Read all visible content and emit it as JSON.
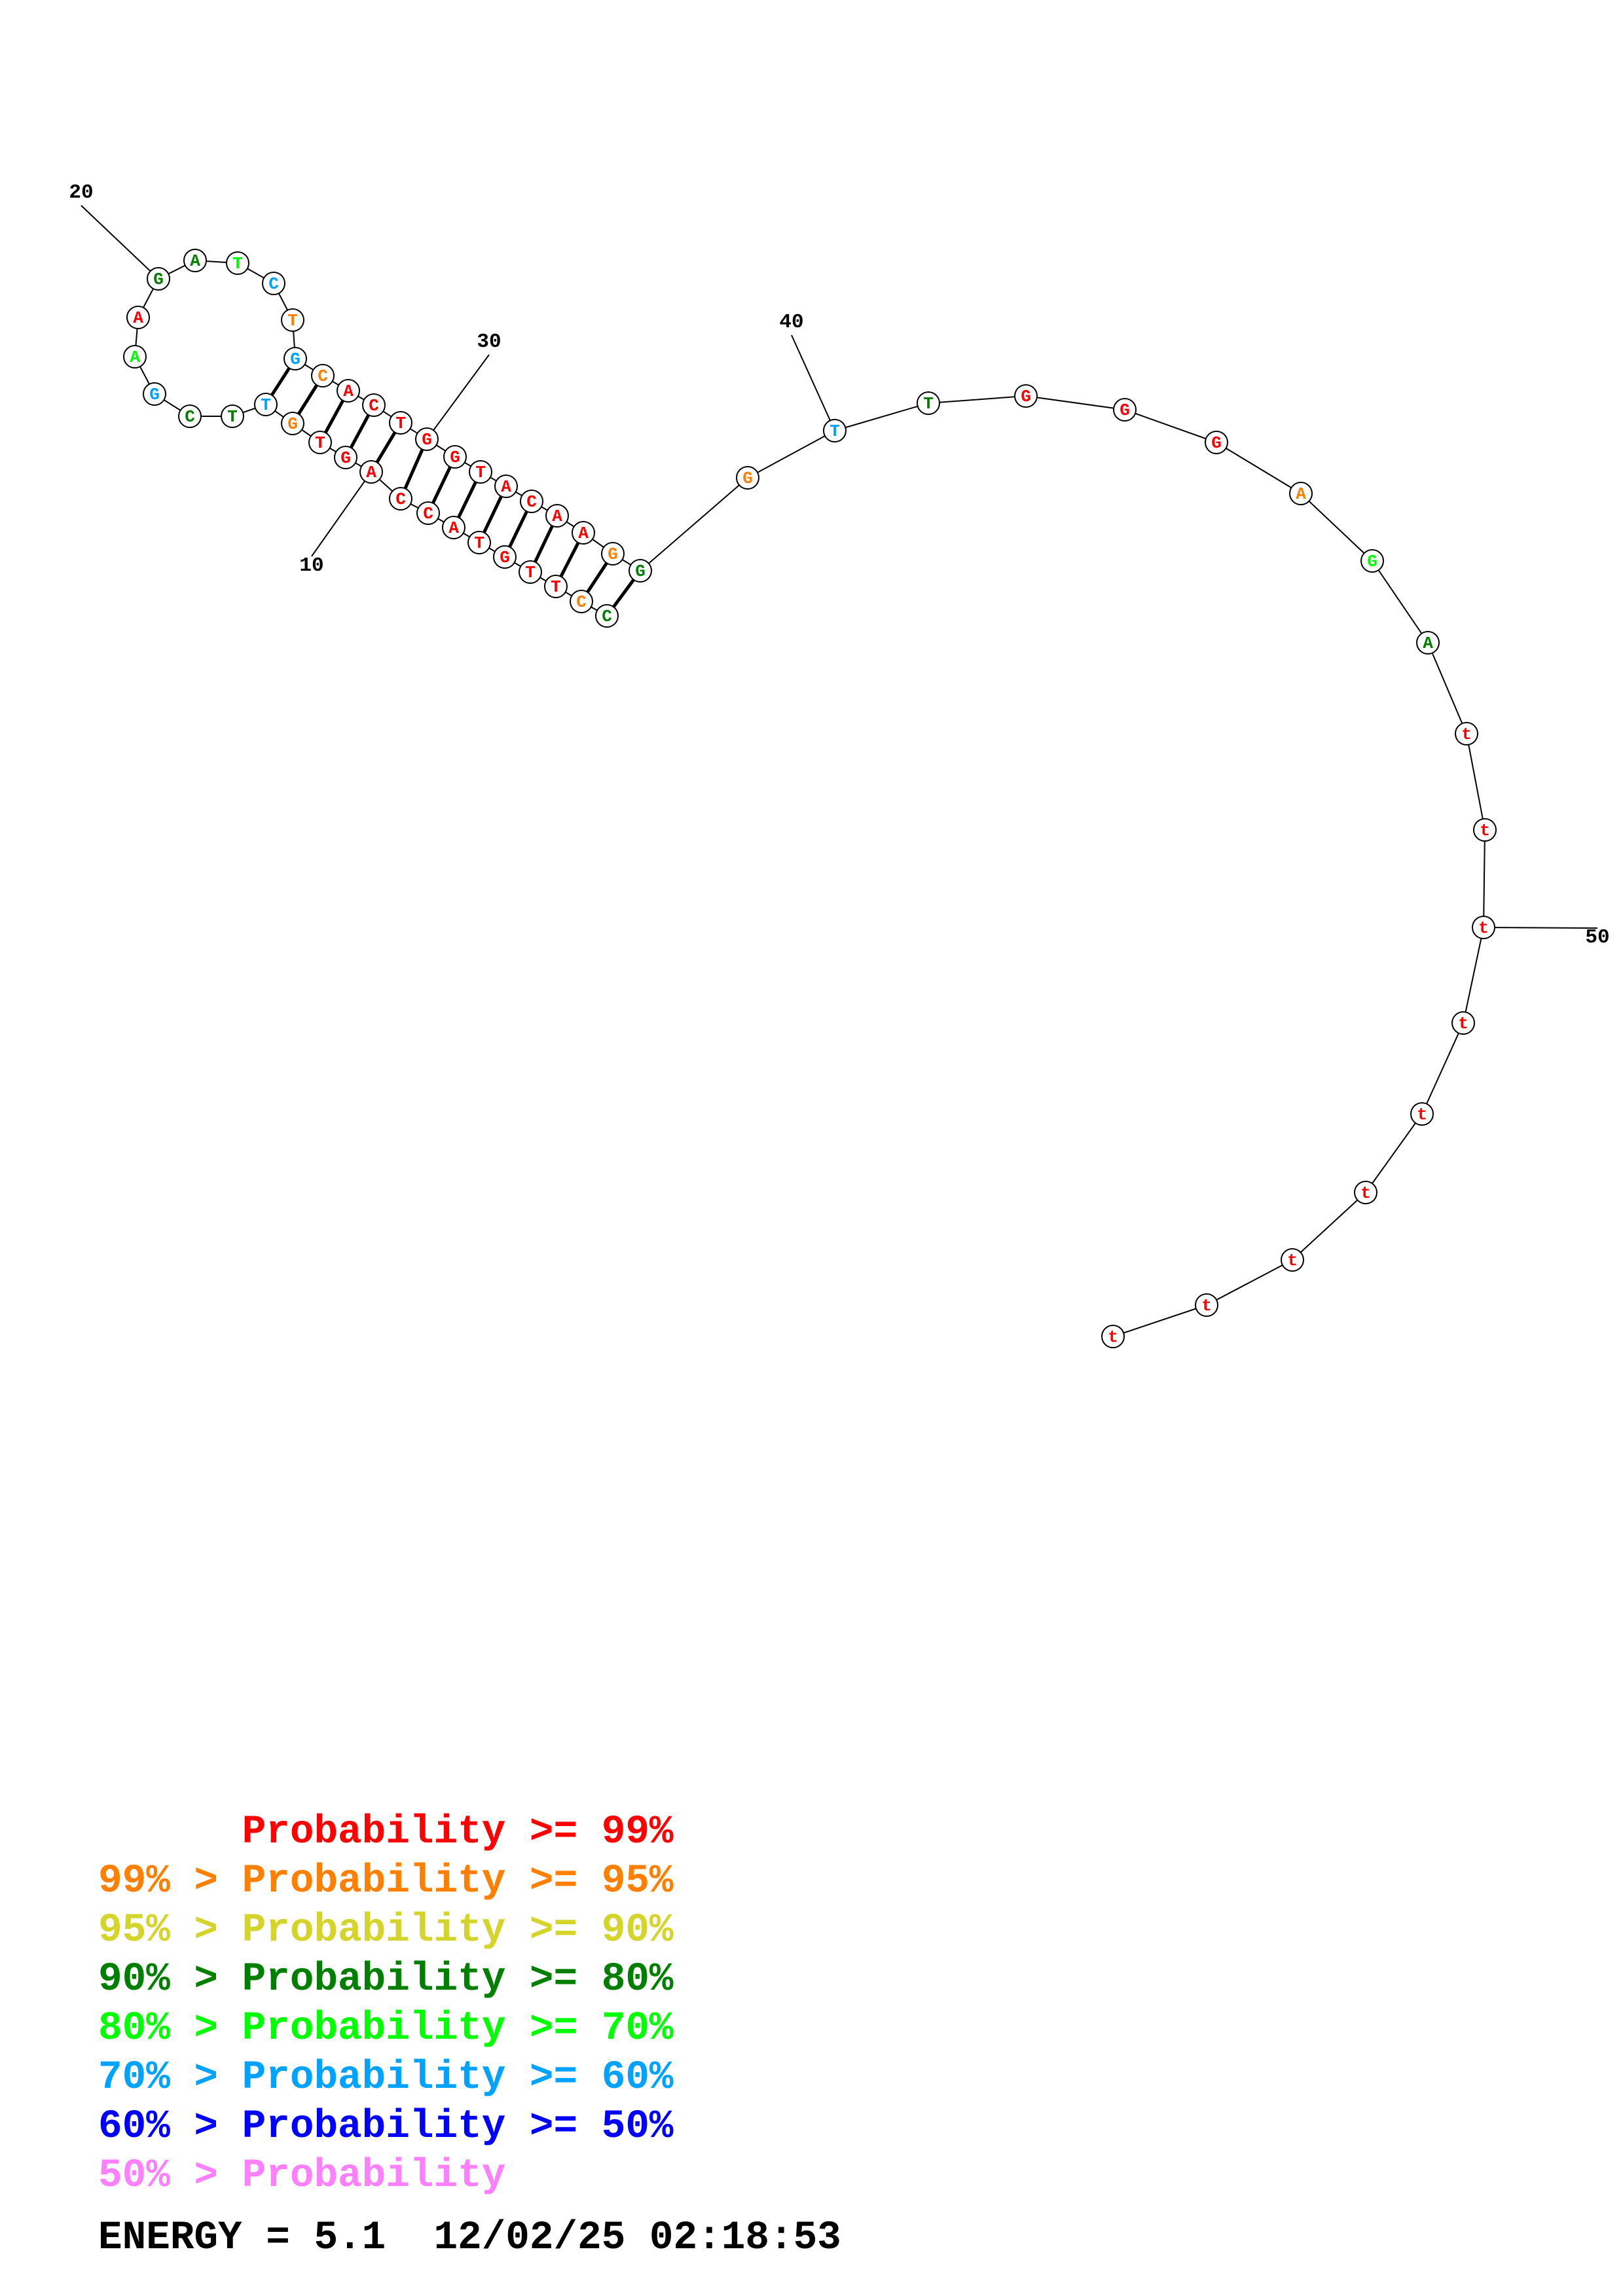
{
  "colors": {
    "p99": "#ff0000",
    "p95": "#ff8000",
    "p90": "#d4d42a",
    "p80": "#007f00",
    "p70": "#00ff00",
    "p60": "#00a2ff",
    "p50": "#0000ff",
    "plow": "#ff80ff",
    "ink": "#000000"
  },
  "nucleotides": [
    {
      "n": 1,
      "base": "C",
      "color": "p80"
    },
    {
      "n": 2,
      "base": "C",
      "color": "p95"
    },
    {
      "n": 3,
      "base": "T",
      "color": "p99"
    },
    {
      "n": 4,
      "base": "T",
      "color": "p99"
    },
    {
      "n": 5,
      "base": "G",
      "color": "p99"
    },
    {
      "n": 6,
      "base": "T",
      "color": "p99"
    },
    {
      "n": 7,
      "base": "A",
      "color": "p99"
    },
    {
      "n": 8,
      "base": "C",
      "color": "p99"
    },
    {
      "n": 9,
      "base": "C",
      "color": "p99"
    },
    {
      "n": 10,
      "base": "A",
      "color": "p99"
    },
    {
      "n": 11,
      "base": "G",
      "color": "p99"
    },
    {
      "n": 12,
      "base": "T",
      "color": "p99"
    },
    {
      "n": 13,
      "base": "G",
      "color": "p95"
    },
    {
      "n": 14,
      "base": "T",
      "color": "p60"
    },
    {
      "n": 15,
      "base": "T",
      "color": "p80"
    },
    {
      "n": 16,
      "base": "C",
      "color": "p80"
    },
    {
      "n": 17,
      "base": "G",
      "color": "p60"
    },
    {
      "n": 18,
      "base": "A",
      "color": "p70"
    },
    {
      "n": 19,
      "base": "A",
      "color": "p99"
    },
    {
      "n": 20,
      "base": "G",
      "color": "p80"
    },
    {
      "n": 21,
      "base": "A",
      "color": "p80"
    },
    {
      "n": 22,
      "base": "T",
      "color": "p70"
    },
    {
      "n": 23,
      "base": "C",
      "color": "p60"
    },
    {
      "n": 24,
      "base": "T",
      "color": "p95"
    },
    {
      "n": 25,
      "base": "G",
      "color": "p60"
    },
    {
      "n": 26,
      "base": "C",
      "color": "p95"
    },
    {
      "n": 27,
      "base": "A",
      "color": "p99"
    },
    {
      "n": 28,
      "base": "C",
      "color": "p99"
    },
    {
      "n": 29,
      "base": "T",
      "color": "p99"
    },
    {
      "n": 30,
      "base": "G",
      "color": "p99"
    },
    {
      "n": 31,
      "base": "G",
      "color": "p99"
    },
    {
      "n": 32,
      "base": "T",
      "color": "p99"
    },
    {
      "n": 33,
      "base": "A",
      "color": "p99"
    },
    {
      "n": 34,
      "base": "C",
      "color": "p99"
    },
    {
      "n": 35,
      "base": "A",
      "color": "p99"
    },
    {
      "n": 36,
      "base": "A",
      "color": "p99"
    },
    {
      "n": 37,
      "base": "G",
      "color": "p95"
    },
    {
      "n": 38,
      "base": "G",
      "color": "p80"
    },
    {
      "n": 39,
      "base": "G",
      "color": "p95"
    },
    {
      "n": 40,
      "base": "T",
      "color": "p60"
    },
    {
      "n": 41,
      "base": "T",
      "color": "p80"
    },
    {
      "n": 42,
      "base": "G",
      "color": "p99"
    },
    {
      "n": 43,
      "base": "G",
      "color": "p99"
    },
    {
      "n": 44,
      "base": "G",
      "color": "p99"
    },
    {
      "n": 45,
      "base": "A",
      "color": "p95"
    },
    {
      "n": 46,
      "base": "G",
      "color": "p70"
    },
    {
      "n": 47,
      "base": "A",
      "color": "p80"
    },
    {
      "n": 48,
      "base": "t",
      "color": "p99"
    },
    {
      "n": 49,
      "base": "t",
      "color": "p99"
    },
    {
      "n": 50,
      "base": "t",
      "color": "p99"
    },
    {
      "n": 51,
      "base": "t",
      "color": "p99"
    },
    {
      "n": 52,
      "base": "t",
      "color": "p99"
    },
    {
      "n": 53,
      "base": "t",
      "color": "p99"
    },
    {
      "n": 54,
      "base": "t",
      "color": "p99"
    },
    {
      "n": 55,
      "base": "t",
      "color": "p99"
    },
    {
      "n": 56,
      "base": "t",
      "color": "p99"
    }
  ],
  "base_pairs": [
    [
      1,
      38
    ],
    [
      2,
      37
    ],
    [
      3,
      36
    ],
    [
      4,
      35
    ],
    [
      5,
      34
    ],
    [
      6,
      33
    ],
    [
      7,
      32
    ],
    [
      8,
      31
    ],
    [
      9,
      30
    ],
    [
      10,
      29
    ],
    [
      11,
      28
    ],
    [
      12,
      27
    ],
    [
      13,
      26
    ],
    [
      14,
      25
    ]
  ],
  "position_labels": [
    {
      "n": 10,
      "text": "10"
    },
    {
      "n": 20,
      "text": "20"
    },
    {
      "n": 30,
      "text": "30"
    },
    {
      "n": 40,
      "text": "40"
    },
    {
      "n": 50,
      "text": "50"
    }
  ],
  "legend": [
    {
      "text": "      Probability >= 99%",
      "color": "p99"
    },
    {
      "text": "99% > Probability >= 95%",
      "color": "p95"
    },
    {
      "text": "95% > Probability >= 90%",
      "color": "p90"
    },
    {
      "text": "90% > Probability >= 80%",
      "color": "p80"
    },
    {
      "text": "80% > Probability >= 70%",
      "color": "p70"
    },
    {
      "text": "70% > Probability >= 60%",
      "color": "p60"
    },
    {
      "text": "60% > Probability >= 50%",
      "color": "p50"
    },
    {
      "text": "50% > Probability",
      "color": "plow"
    }
  ],
  "footer": {
    "energy": "ENERGY = 5.1  12/02/25 02:18:53"
  }
}
